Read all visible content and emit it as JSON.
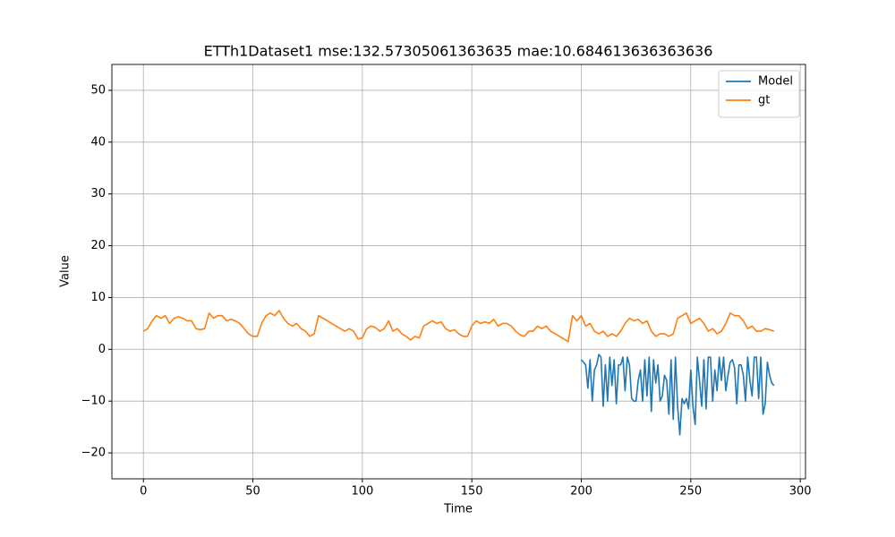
{
  "chart_data": {
    "type": "line",
    "title": "ETTh1Dataset1 mse:132.57305061363635 mae:10.684613636363636",
    "x_label": "Time",
    "y_label": "Value",
    "xlim": [
      -14.4,
      302.4
    ],
    "ylim": [
      -25,
      55
    ],
    "xticks": [
      0,
      50,
      100,
      150,
      200,
      250,
      300
    ],
    "yticks": [
      {
        "value": -20,
        "label": "−20"
      },
      {
        "value": -10,
        "label": "−10"
      },
      0,
      10,
      20,
      30,
      40,
      50
    ],
    "grid": true,
    "legend": "upper right",
    "series": [
      {
        "name": "Model",
        "color": "#1f77b4",
        "x": [
          200,
          201,
          202,
          203,
          204,
          205,
          206,
          207,
          208,
          209,
          210,
          211,
          212,
          213,
          214,
          215,
          216,
          217,
          218,
          219,
          220,
          221,
          222,
          223,
          224,
          225,
          226,
          227,
          228,
          229,
          230,
          231,
          232,
          233,
          234,
          235,
          236,
          237,
          238,
          239,
          240,
          241,
          242,
          243,
          244,
          245,
          246,
          247,
          248,
          249,
          250,
          251,
          252,
          253,
          254,
          255,
          256,
          257,
          258,
          259,
          260,
          261,
          262,
          263,
          264,
          265,
          266,
          267,
          268,
          269,
          270,
          271,
          272,
          273,
          274,
          275,
          276,
          277,
          278,
          279,
          280,
          281,
          282,
          283,
          284,
          285,
          286,
          287,
          288
        ],
        "values": [
          -2,
          -2.5,
          -3,
          -7.5,
          -2,
          -10,
          -4,
          -3,
          -1,
          -1.5,
          -11,
          -3,
          -10,
          -1.5,
          -7,
          -2,
          -10.5,
          -3,
          -3,
          -1.5,
          -8,
          -1.5,
          -3,
          -9.5,
          -10,
          -10,
          -6,
          -4,
          -10,
          -2,
          -9,
          -1.5,
          -12,
          -2,
          -6.5,
          -3,
          -10,
          -9,
          -5,
          -6,
          -12.5,
          -2,
          -13.5,
          -1.5,
          -11,
          -16.5,
          -9.5,
          -10.5,
          -9.5,
          -11.5,
          -4,
          -11,
          -14.5,
          -1.5,
          -6,
          -11,
          -2,
          -11.5,
          -1.5,
          -1.5,
          -10,
          -4,
          -8,
          -1.5,
          -6,
          -1.5,
          -8,
          -5,
          -2.5,
          -2,
          -3.5,
          -10.5,
          -3,
          -3,
          -5,
          -10,
          -1.5,
          -6,
          -9,
          -1.5,
          -1.5,
          -9.5,
          -1.5,
          -12.5,
          -10.5,
          -2.5,
          -5,
          -6.5,
          -7
        ]
      },
      {
        "name": "gt",
        "color": "#ff7f0e",
        "x": [
          0,
          2,
          4,
          6,
          8,
          10,
          12,
          14,
          16,
          18,
          20,
          22,
          24,
          26,
          28,
          30,
          32,
          34,
          36,
          38,
          40,
          42,
          44,
          46,
          48,
          50,
          52,
          54,
          56,
          58,
          60,
          62,
          64,
          66,
          68,
          70,
          72,
          74,
          76,
          78,
          80,
          82,
          84,
          86,
          88,
          90,
          92,
          94,
          96,
          98,
          100,
          102,
          104,
          106,
          108,
          110,
          112,
          114,
          116,
          118,
          120,
          122,
          124,
          126,
          128,
          130,
          132,
          134,
          136,
          138,
          140,
          142,
          144,
          146,
          148,
          150,
          152,
          154,
          156,
          158,
          160,
          162,
          164,
          166,
          168,
          170,
          172,
          174,
          176,
          178,
          180,
          182,
          184,
          186,
          188,
          190,
          192,
          194,
          196,
          198,
          200,
          202,
          204,
          206,
          208,
          210,
          212,
          214,
          216,
          218,
          220,
          222,
          224,
          226,
          228,
          230,
          232,
          234,
          236,
          238,
          240,
          242,
          244,
          246,
          248,
          250,
          252,
          254,
          256,
          258,
          260,
          262,
          264,
          266,
          268,
          270,
          272,
          274,
          276,
          278,
          280,
          282,
          284,
          286,
          288
        ],
        "values": [
          3.5,
          4,
          5.5,
          6.5,
          6,
          6.5,
          5,
          6,
          6.3,
          6,
          5.5,
          5.5,
          4,
          3.8,
          4,
          7,
          6,
          6.5,
          6.5,
          5.5,
          5.8,
          5.5,
          5,
          4,
          3,
          2.5,
          2.5,
          5,
          6.5,
          7,
          6.5,
          7.5,
          6,
          5,
          4.5,
          5,
          4,
          3.5,
          2.5,
          3,
          6.5,
          6,
          5.5,
          5,
          4.5,
          4,
          3.5,
          4,
          3.5,
          2,
          2.2,
          4,
          4.5,
          4.2,
          3.5,
          4,
          5.5,
          3.5,
          4,
          3,
          2.5,
          1.8,
          2.5,
          2.2,
          4.5,
          5,
          5.5,
          5,
          5.3,
          4,
          3.5,
          3.8,
          3,
          2.5,
          2.5,
          4.5,
          5.5,
          5,
          5.3,
          5,
          5.8,
          4.5,
          5,
          5,
          4.5,
          3.5,
          2.8,
          2.5,
          3.5,
          3.5,
          4.5,
          4,
          4.5,
          3.5,
          3,
          2.5,
          2,
          1.5,
          6.5,
          5.5,
          6.5,
          4.5,
          5,
          3.5,
          3,
          3.5,
          2.5,
          3,
          2.5,
          3.5,
          5,
          6,
          5.5,
          5.8,
          5,
          5.5,
          3.5,
          2.5,
          3,
          3,
          2.5,
          3,
          6,
          6.5,
          7,
          5,
          5.5,
          6,
          5,
          3.5,
          4,
          3,
          3.5,
          5,
          7,
          6.5,
          6.5,
          5.5,
          4,
          4.5,
          3.5,
          3.5,
          4,
          3.8,
          3.5
        ]
      }
    ]
  }
}
